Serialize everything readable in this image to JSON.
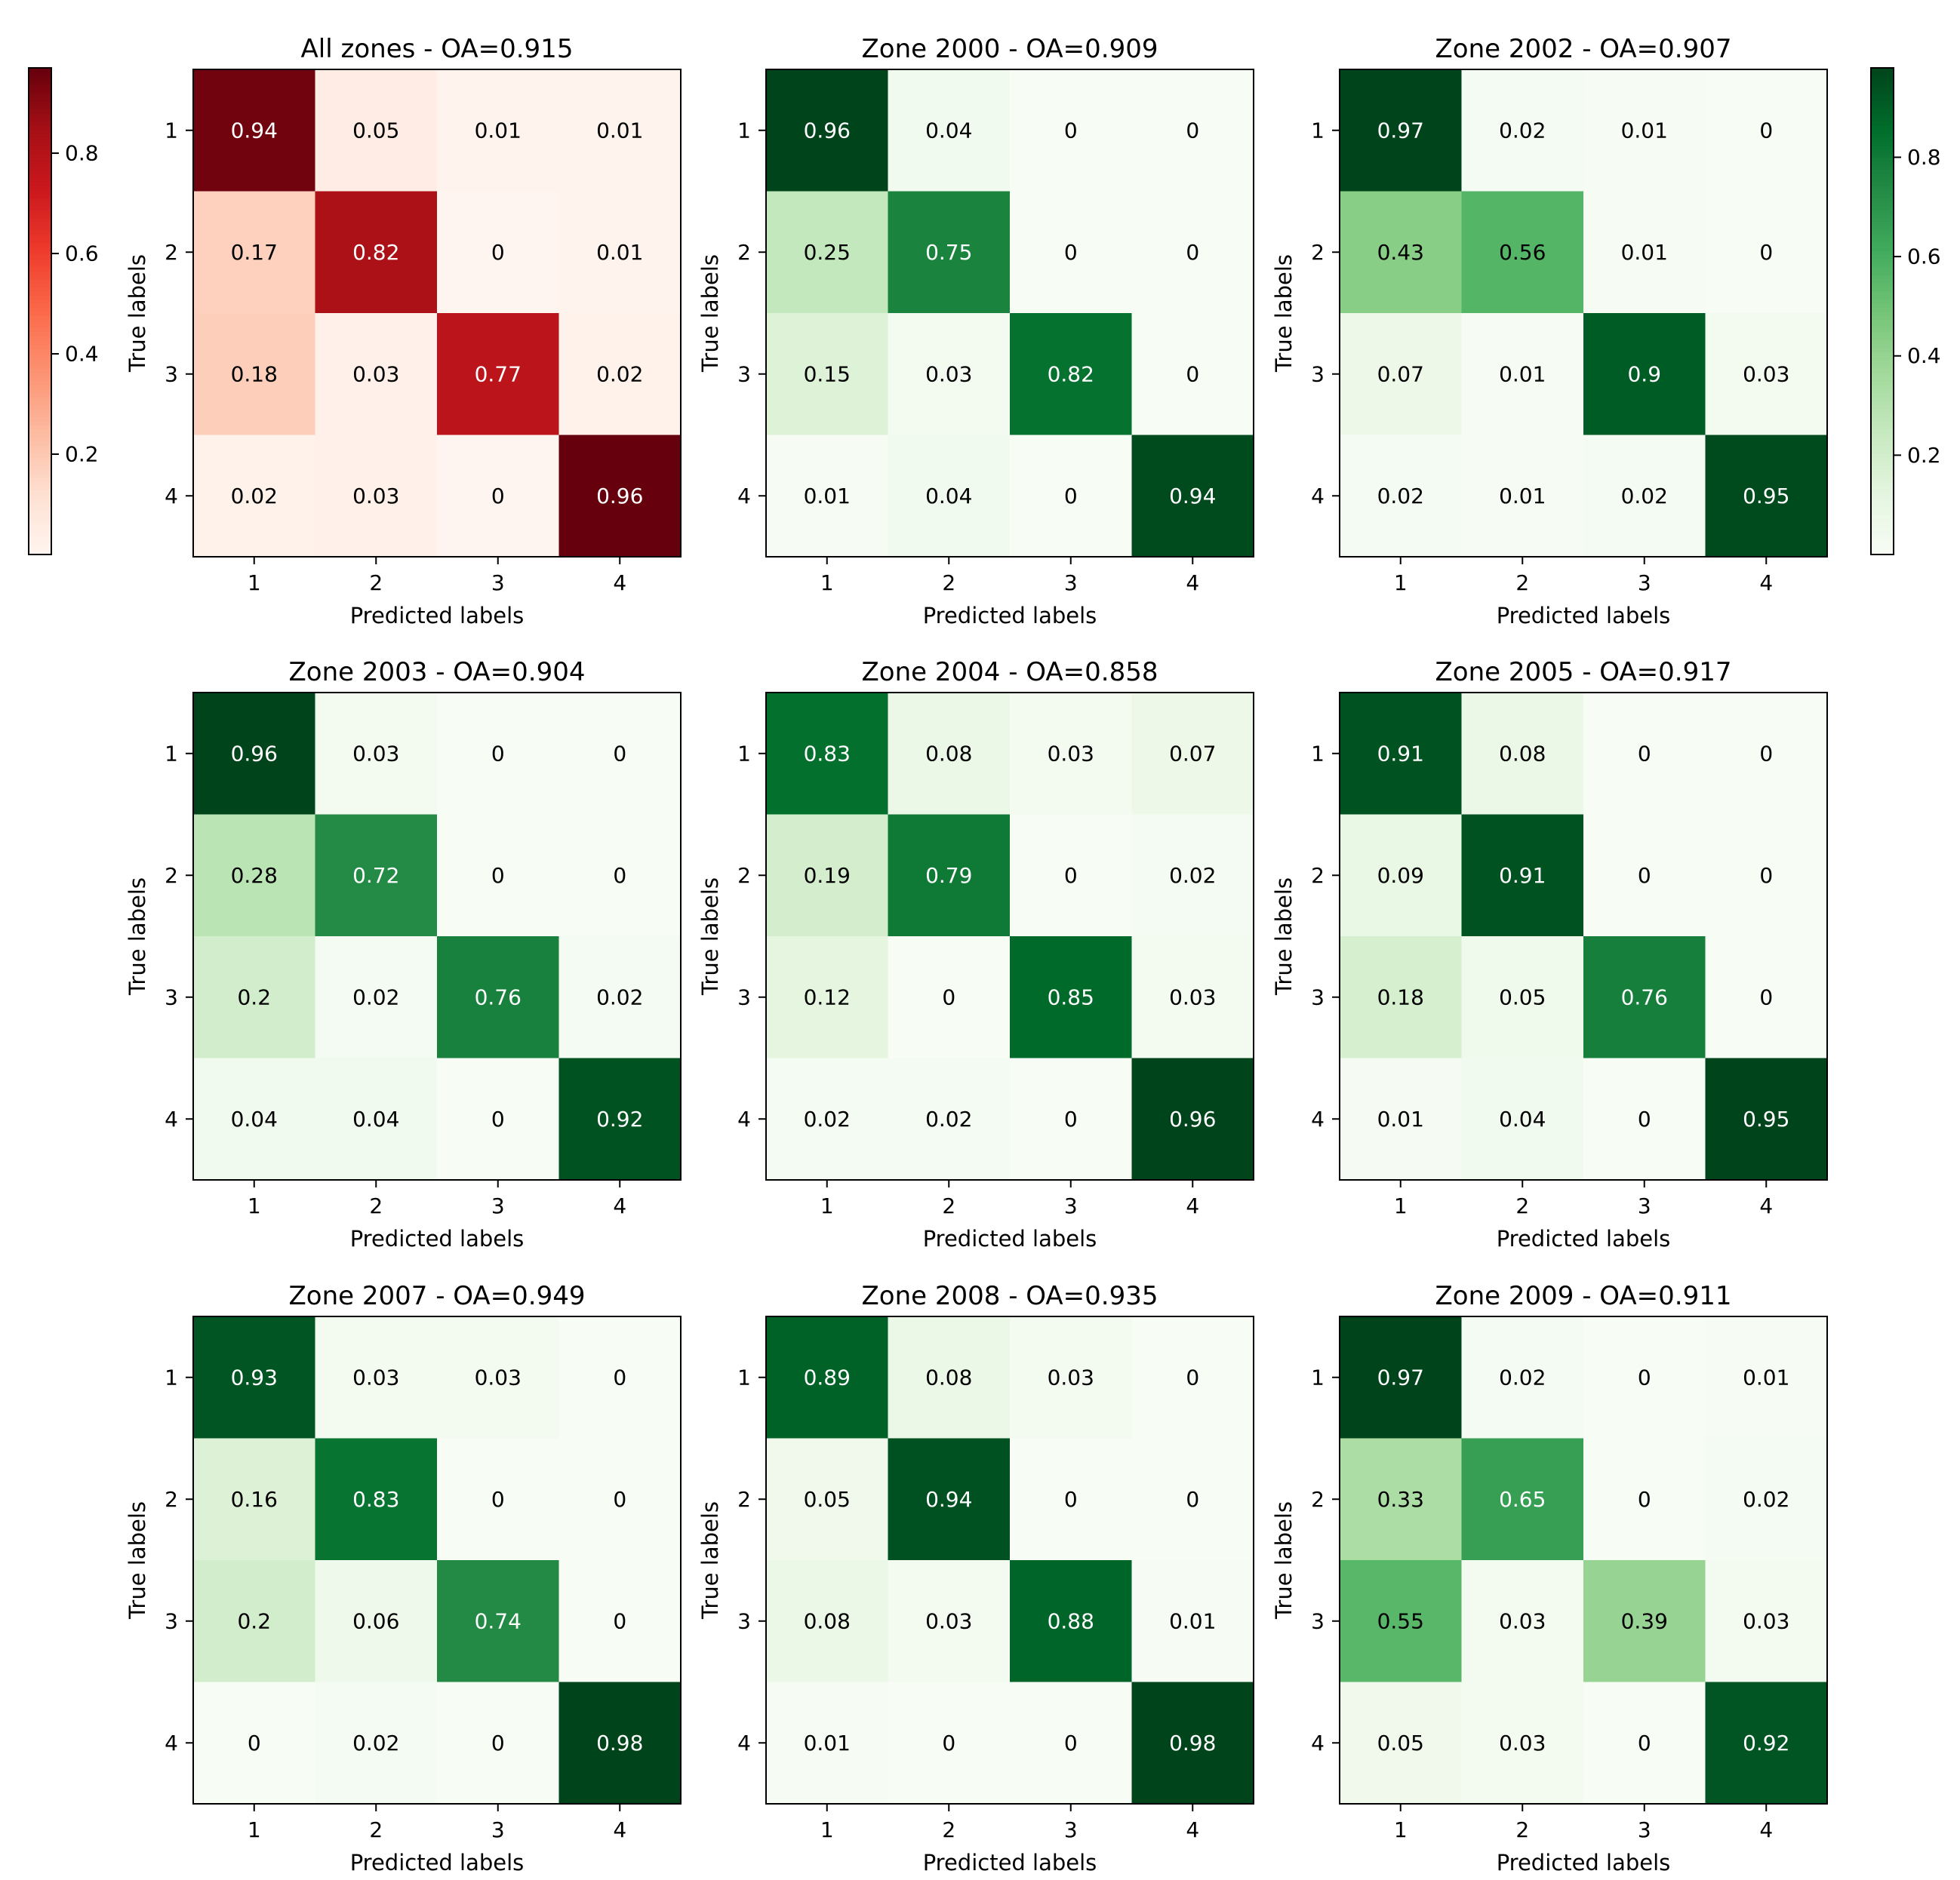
{
  "chart_data": [
    {
      "type": "heatmap",
      "title": "All zones - OA=0.915",
      "xlabel": "Predicted labels",
      "ylabel": "True labels",
      "x": [
        "1",
        "2",
        "3",
        "4"
      ],
      "y": [
        "1",
        "2",
        "3",
        "4"
      ],
      "values": [
        [
          0.94,
          0.05,
          0.01,
          0.01
        ],
        [
          0.17,
          0.82,
          0.0,
          0.01
        ],
        [
          0.18,
          0.03,
          0.77,
          0.02
        ],
        [
          0.02,
          0.03,
          0.0,
          0.96
        ]
      ],
      "colormap": "Reds"
    },
    {
      "type": "heatmap",
      "title": "Zone 2000 - OA=0.909",
      "xlabel": "Predicted labels",
      "ylabel": "True labels",
      "x": [
        "1",
        "2",
        "3",
        "4"
      ],
      "y": [
        "1",
        "2",
        "3",
        "4"
      ],
      "values": [
        [
          0.96,
          0.04,
          0.0,
          0.0
        ],
        [
          0.25,
          0.75,
          0.0,
          0.0
        ],
        [
          0.15,
          0.03,
          0.82,
          0.0
        ],
        [
          0.01,
          0.04,
          0.0,
          0.94
        ]
      ],
      "colormap": "Greens"
    },
    {
      "type": "heatmap",
      "title": "Zone 2002 - OA=0.907",
      "xlabel": "Predicted labels",
      "ylabel": "True labels",
      "x": [
        "1",
        "2",
        "3",
        "4"
      ],
      "y": [
        "1",
        "2",
        "3",
        "4"
      ],
      "values": [
        [
          0.97,
          0.02,
          0.01,
          0.0
        ],
        [
          0.43,
          0.56,
          0.01,
          0.0
        ],
        [
          0.07,
          0.01,
          0.9,
          0.03
        ],
        [
          0.02,
          0.01,
          0.02,
          0.95
        ]
      ],
      "colormap": "Greens"
    },
    {
      "type": "heatmap",
      "title": "Zone 2003 - OA=0.904",
      "xlabel": "Predicted labels",
      "ylabel": "True labels",
      "x": [
        "1",
        "2",
        "3",
        "4"
      ],
      "y": [
        "1",
        "2",
        "3",
        "4"
      ],
      "values": [
        [
          0.96,
          0.03,
          0.0,
          0.0
        ],
        [
          0.28,
          0.72,
          0.0,
          0.0
        ],
        [
          0.2,
          0.02,
          0.76,
          0.02
        ],
        [
          0.04,
          0.04,
          0.0,
          0.92
        ]
      ],
      "colormap": "Greens"
    },
    {
      "type": "heatmap",
      "title": "Zone 2004 - OA=0.858",
      "xlabel": "Predicted labels",
      "ylabel": "True labels",
      "x": [
        "1",
        "2",
        "3",
        "4"
      ],
      "y": [
        "1",
        "2",
        "3",
        "4"
      ],
      "values": [
        [
          0.83,
          0.08,
          0.03,
          0.07
        ],
        [
          0.19,
          0.79,
          0.0,
          0.02
        ],
        [
          0.12,
          0.0,
          0.85,
          0.03
        ],
        [
          0.02,
          0.02,
          0.0,
          0.96
        ]
      ],
      "colormap": "Greens"
    },
    {
      "type": "heatmap",
      "title": "Zone 2005 - OA=0.917",
      "xlabel": "Predicted labels",
      "ylabel": "True labels",
      "x": [
        "1",
        "2",
        "3",
        "4"
      ],
      "y": [
        "1",
        "2",
        "3",
        "4"
      ],
      "values": [
        [
          0.91,
          0.08,
          0.0,
          0.0
        ],
        [
          0.09,
          0.91,
          0.0,
          0.0
        ],
        [
          0.18,
          0.05,
          0.76,
          0.0
        ],
        [
          0.01,
          0.04,
          0.0,
          0.95
        ]
      ],
      "colormap": "Greens"
    },
    {
      "type": "heatmap",
      "title": "Zone 2007 - OA=0.949",
      "xlabel": "Predicted labels",
      "ylabel": "True labels",
      "x": [
        "1",
        "2",
        "3",
        "4"
      ],
      "y": [
        "1",
        "2",
        "3",
        "4"
      ],
      "values": [
        [
          0.93,
          0.03,
          0.03,
          0.0
        ],
        [
          0.16,
          0.83,
          0.0,
          0.0
        ],
        [
          0.2,
          0.06,
          0.74,
          0.0
        ],
        [
          0.0,
          0.02,
          0.0,
          0.98
        ]
      ],
      "colormap": "Greens"
    },
    {
      "type": "heatmap",
      "title": "Zone 2008 - OA=0.935",
      "xlabel": "Predicted labels",
      "ylabel": "True labels",
      "x": [
        "1",
        "2",
        "3",
        "4"
      ],
      "y": [
        "1",
        "2",
        "3",
        "4"
      ],
      "values": [
        [
          0.89,
          0.08,
          0.03,
          0.0
        ],
        [
          0.05,
          0.94,
          0.0,
          0.0
        ],
        [
          0.08,
          0.03,
          0.88,
          0.01
        ],
        [
          0.01,
          0.0,
          0.0,
          0.98
        ]
      ],
      "colormap": "Greens"
    },
    {
      "type": "heatmap",
      "title": "Zone 2009 - OA=0.911",
      "xlabel": "Predicted labels",
      "ylabel": "True labels",
      "x": [
        "1",
        "2",
        "3",
        "4"
      ],
      "y": [
        "1",
        "2",
        "3",
        "4"
      ],
      "values": [
        [
          0.97,
          0.02,
          0.0,
          0.01
        ],
        [
          0.33,
          0.65,
          0.0,
          0.02
        ],
        [
          0.55,
          0.03,
          0.39,
          0.03
        ],
        [
          0.05,
          0.03,
          0.0,
          0.92
        ]
      ],
      "colormap": "Greens"
    }
  ],
  "colorbars": [
    {
      "colormap": "Reds",
      "side": "left",
      "range": [
        0.0,
        0.97
      ],
      "ticks": [
        0.2,
        0.4,
        0.6,
        0.8
      ],
      "tick_labels": [
        "0.2",
        "0.4",
        "0.6",
        "0.8"
      ]
    },
    {
      "colormap": "Greens",
      "side": "right",
      "range": [
        0.0,
        0.98
      ],
      "ticks": [
        0.2,
        0.4,
        0.6,
        0.8
      ],
      "tick_labels": [
        "0.2",
        "0.4",
        "0.6",
        "0.8"
      ]
    }
  ],
  "colors": {
    "reds": [
      "#fff5f0",
      "#fee0d2",
      "#fcbba1",
      "#fc9272",
      "#fb6a4a",
      "#ef3b2c",
      "#cb181d",
      "#a50f15",
      "#67000d"
    ],
    "greens": [
      "#f7fcf5",
      "#e5f5e0",
      "#c7e9c0",
      "#a1d99b",
      "#74c476",
      "#41ab5d",
      "#238b45",
      "#006d2c",
      "#00441b"
    ],
    "frame": "#000000",
    "background": "#ffffff"
  }
}
